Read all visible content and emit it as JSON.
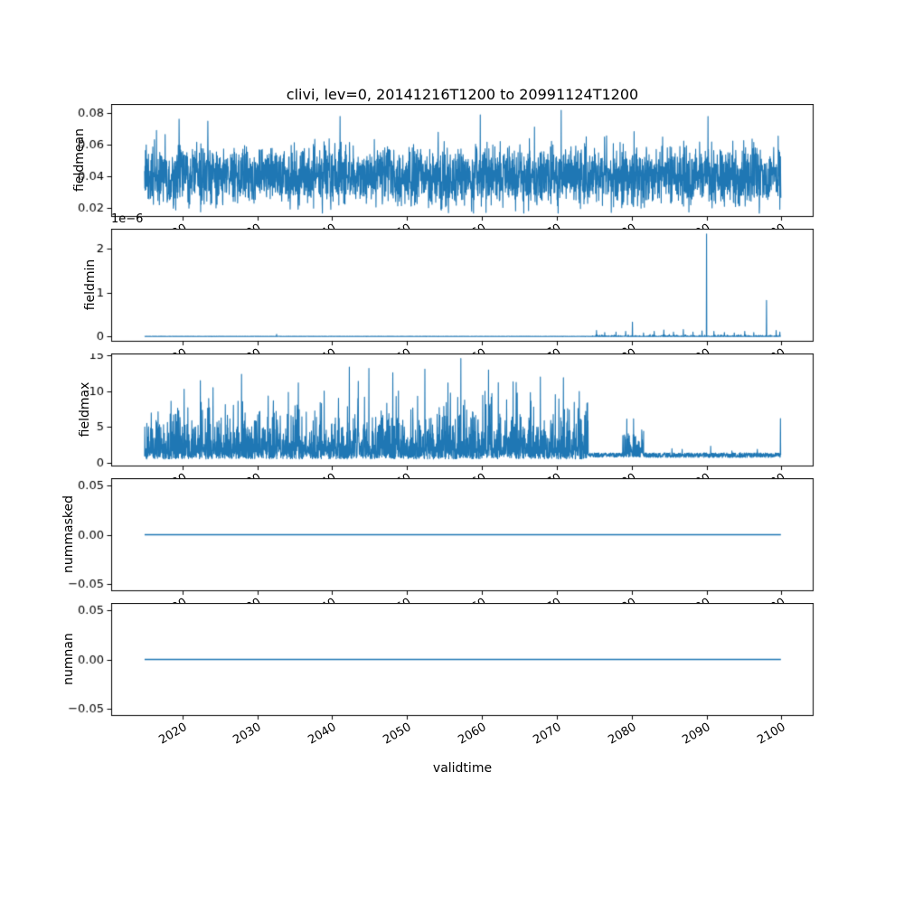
{
  "chart": {
    "title": "clivi, lev=0, 20141216T1200 to 20991124T1200",
    "xlabel": "validtime",
    "line_color": "#1f77b4",
    "frame_color": "#000000",
    "background": "#ffffff"
  },
  "x_axis": {
    "label": "validtime",
    "xlim": [
      2010.5,
      2104.3
    ],
    "ticks": [
      2020,
      2030,
      2040,
      2050,
      2060,
      2070,
      2080,
      2090,
      2100
    ],
    "tick_labels": [
      "2020",
      "2030",
      "2040",
      "2050",
      "2060",
      "2070",
      "2080",
      "2090",
      "2100"
    ],
    "tick_rotation_deg": 30
  },
  "chart_data": [
    {
      "type": "line",
      "ylabel": "fieldmean",
      "x_range": [
        2014.96,
        2099.93
      ],
      "ylim": [
        0.014,
        0.086
      ],
      "yticks": [
        0.02,
        0.04,
        0.06,
        0.08
      ],
      "ytick_labels": [
        "0.02",
        "0.04",
        "0.06",
        "0.08"
      ],
      "description": "dense noisy series centered near 0.04, envelope ~0.018 to 0.082 over 2015-2100",
      "gen": {
        "kind": "gauss",
        "n": 3100,
        "x0": 2014.96,
        "x1": 2099.93,
        "base": 0.04,
        "spread": 0.018,
        "up_prob": 0.013,
        "up_amp": 0.03,
        "down_prob": 0.01,
        "down_amp": 0.014,
        "clip_min": 0.0165,
        "clip_max": 0.0835,
        "forced_peaks": [
          [
            2023.4,
            0.075
          ],
          [
            2059.8,
            0.079
          ],
          [
            2070.6,
            0.082
          ],
          [
            2090.2,
            0.078
          ]
        ]
      }
    },
    {
      "type": "line",
      "ylabel": "fieldmin",
      "offset_text": "1e−6",
      "x_range": [
        2014.96,
        2099.93
      ],
      "ylim": [
        -0.117,
        2.447
      ],
      "y_scale_note": "values in units of 1e-6",
      "yticks": [
        0,
        1,
        2
      ],
      "ytick_labels": [
        "0",
        "1",
        "2"
      ],
      "description": "flat at ~0 until ~2074, small spikes after, main spike 2.33e-6 at 2090 and 0.82e-6 at 2098",
      "gen": {
        "kind": "spikes",
        "n": 3100,
        "x0": 2014.96,
        "x1": 2099.93,
        "noise_from": 2074.5,
        "noise_prob": 0.35,
        "noise_amp": 0.05,
        "base_noise": 0.008,
        "spikes": [
          [
            2032.6,
            0.05
          ],
          [
            2075.3,
            0.14
          ],
          [
            2076.4,
            0.09
          ],
          [
            2077.9,
            0.1
          ],
          [
            2079.2,
            0.12
          ],
          [
            2080.1,
            0.33
          ],
          [
            2081.6,
            0.08
          ],
          [
            2083.0,
            0.12
          ],
          [
            2084.3,
            0.15
          ],
          [
            2085.6,
            0.1
          ],
          [
            2086.9,
            0.16
          ],
          [
            2088.2,
            0.1
          ],
          [
            2089.4,
            0.13
          ],
          [
            2090.0,
            2.33
          ],
          [
            2091.0,
            0.12
          ],
          [
            2092.4,
            0.09
          ],
          [
            2093.7,
            0.08
          ],
          [
            2095.1,
            0.12
          ],
          [
            2096.3,
            0.09
          ],
          [
            2098.0,
            0.82
          ],
          [
            2099.3,
            0.14
          ],
          [
            2099.8,
            0.1
          ]
        ]
      }
    },
    {
      "type": "line",
      "ylabel": "fieldmax",
      "x_range": [
        2014.96,
        2099.93
      ],
      "ylim": [
        -0.5,
        15.3
      ],
      "yticks": [
        0,
        5,
        10,
        15
      ],
      "ytick_labels": [
        "0",
        "5",
        "10",
        "15"
      ],
      "description": "noisy 0.5-12 with peaks to ~14.6 until ~2074, drops to ~1, bump to ~7 around 2079-2081, flat ~1 to 2100 with final spike ~6.2",
      "gen": {
        "kind": "segments",
        "density": 36,
        "segments": [
          {
            "x0": 2014.96,
            "x1": 2074.2,
            "type": "exp",
            "base": 0.55,
            "scale": 1.9,
            "clip": 11.5
          },
          {
            "x0": 2074.2,
            "x1": 2078.8,
            "type": "flat",
            "base": 0.8,
            "amp": 0.6
          },
          {
            "x0": 2078.8,
            "x1": 2081.6,
            "type": "exp",
            "base": 0.8,
            "scale": 1.3,
            "clip": 6.2
          },
          {
            "x0": 2081.6,
            "x1": 2099.93,
            "type": "flat",
            "base": 0.75,
            "amp": 0.65,
            "spike_prob": 0.015,
            "spike_amp": 1.1
          }
        ],
        "forced_peaks": [
          [
            2022.4,
            11.5
          ],
          [
            2027.9,
            12.4
          ],
          [
            2035.5,
            11.2
          ],
          [
            2042.3,
            13.4
          ],
          [
            2044.9,
            13.2
          ],
          [
            2048.1,
            12.6
          ],
          [
            2052.4,
            13.1
          ],
          [
            2057.2,
            14.6
          ],
          [
            2060.9,
            13.0
          ],
          [
            2067.8,
            12.0
          ],
          [
            2070.9,
            11.9
          ],
          [
            2099.88,
            6.2
          ]
        ]
      }
    },
    {
      "type": "line",
      "ylabel": "nummasked",
      "x_range": [
        2014.96,
        2099.93
      ],
      "ylim": [
        -0.0575,
        0.0575
      ],
      "yticks": [
        -0.05,
        0,
        0.05
      ],
      "ytick_labels": [
        "−0.05",
        "0.00",
        "0.05"
      ],
      "description": "constant zero line",
      "gen": {
        "kind": "const",
        "x0": 2014.96,
        "x1": 2099.93,
        "value": 0
      }
    },
    {
      "type": "line",
      "ylabel": "numnan",
      "x_range": [
        2014.96,
        2099.93
      ],
      "ylim": [
        -0.0575,
        0.0575
      ],
      "yticks": [
        -0.05,
        0,
        0.05
      ],
      "ytick_labels": [
        "−0.05",
        "0.00",
        "0.05"
      ],
      "description": "constant zero line",
      "gen": {
        "kind": "const",
        "x0": 2014.96,
        "x1": 2099.93,
        "value": 0
      }
    }
  ]
}
